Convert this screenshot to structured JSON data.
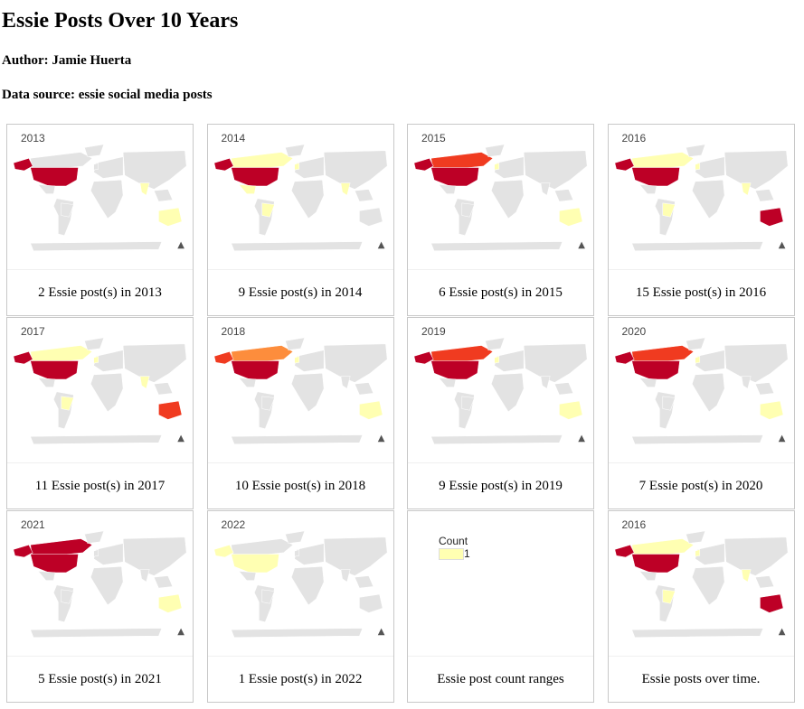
{
  "page": {
    "title": "Essie Posts Over 10 Years",
    "author": "Author: Jamie Huerta",
    "source": "Data source: essie social media posts"
  },
  "colors": {
    "land": "#e3e3e3",
    "yellow": "#ffffb2",
    "orange": "#fd8d3c",
    "red_orange": "#f03b20",
    "red": "#bd0026"
  },
  "cards": [
    {
      "year": "2013",
      "caption": "2 Essie post(s) in 2013",
      "highlights": {
        "usa": "red",
        "canada": "land",
        "alaska": "red",
        "australia": "yellow",
        "mexico": "land",
        "brazil": "land",
        "uk": "land",
        "india": "yellow"
      }
    },
    {
      "year": "2014",
      "caption": "9 Essie post(s) in 2014",
      "highlights": {
        "usa": "red",
        "canada": "yellow",
        "alaska": "red",
        "australia": "land",
        "mexico": "yellow",
        "brazil": "yellow",
        "uk": "yellow",
        "india": "yellow"
      }
    },
    {
      "year": "2015",
      "caption": "6 Essie post(s) in 2015",
      "highlights": {
        "usa": "red",
        "canada": "red_orange",
        "alaska": "red",
        "australia": "yellow",
        "mexico": "land",
        "brazil": "land",
        "uk": "yellow",
        "india": "land"
      }
    },
    {
      "year": "2016",
      "caption": "15 Essie post(s) in 2016",
      "highlights": {
        "usa": "red",
        "canada": "yellow",
        "alaska": "red",
        "australia": "red",
        "mexico": "land",
        "brazil": "yellow",
        "uk": "yellow",
        "india": "yellow"
      }
    },
    {
      "year": "2017",
      "caption": "11 Essie post(s) in 2017",
      "highlights": {
        "usa": "red",
        "canada": "yellow",
        "alaska": "red",
        "australia": "red_orange",
        "mexico": "land",
        "brazil": "yellow",
        "uk": "yellow",
        "india": "yellow"
      }
    },
    {
      "year": "2018",
      "caption": "10 Essie post(s) in 2018",
      "highlights": {
        "usa": "red",
        "canada": "orange",
        "alaska": "red_orange",
        "australia": "yellow",
        "mexico": "land",
        "brazil": "land",
        "uk": "yellow",
        "india": "land"
      }
    },
    {
      "year": "2019",
      "caption": "9 Essie post(s) in 2019",
      "highlights": {
        "usa": "red",
        "canada": "red_orange",
        "alaska": "red",
        "australia": "yellow",
        "mexico": "land",
        "brazil": "land",
        "uk": "yellow",
        "india": "land"
      }
    },
    {
      "year": "2020",
      "caption": "7 Essie post(s) in 2020",
      "highlights": {
        "usa": "red",
        "canada": "red_orange",
        "alaska": "red",
        "australia": "yellow",
        "mexico": "land",
        "brazil": "land",
        "uk": "yellow",
        "india": "land"
      }
    },
    {
      "year": "2021",
      "caption": "5 Essie post(s) in 2021",
      "highlights": {
        "usa": "red",
        "canada": "red",
        "alaska": "red",
        "australia": "yellow",
        "mexico": "land",
        "brazil": "land",
        "uk": "land",
        "india": "land"
      }
    },
    {
      "year": "2022",
      "caption": "1 Essie post(s) in 2022",
      "highlights": {
        "usa": "yellow",
        "canada": "land",
        "alaska": "yellow",
        "australia": "land",
        "mexico": "land",
        "brazil": "land",
        "uk": "land",
        "india": "land"
      }
    },
    {
      "year": "",
      "caption": "Essie post count ranges",
      "legend": {
        "title": "Count",
        "items": [
          "1"
        ]
      }
    },
    {
      "year": "2016",
      "caption": "Essie posts over time.",
      "highlights": {
        "usa": "red",
        "canada": "yellow",
        "alaska": "red",
        "australia": "red",
        "mexico": "land",
        "brazil": "yellow",
        "uk": "yellow",
        "india": "yellow"
      }
    }
  ]
}
